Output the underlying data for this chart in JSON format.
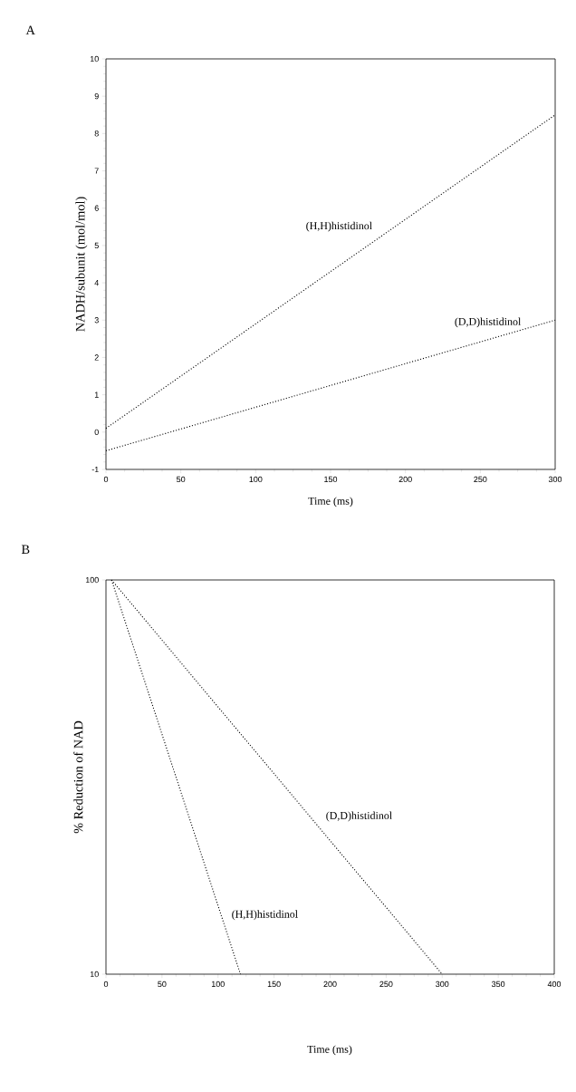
{
  "chart_data": [
    {
      "type": "line",
      "title": "A",
      "xlabel": "Time (ms)",
      "ylabel": "NADH/subunit (mol/mol)",
      "xlim": [
        0,
        300
      ],
      "ylim": [
        -1,
        10
      ],
      "xticks": [
        0,
        50,
        100,
        150,
        200,
        250,
        300
      ],
      "yticks": [
        -1,
        0,
        1,
        2,
        3,
        4,
        5,
        6,
        7,
        8,
        9,
        10
      ],
      "line_style": "dotted",
      "marker": "none",
      "series": [
        {
          "name": "(H,H)histidinol",
          "color": "#000000",
          "x": [
            0,
            300
          ],
          "values": [
            0.1,
            8.5
          ]
        },
        {
          "name": "(D,D)histidinol",
          "color": "#000000",
          "x": [
            0,
            300
          ],
          "values": [
            -0.5,
            3.0
          ]
        }
      ]
    },
    {
      "type": "line",
      "title": "B",
      "xlabel": "Time (ms)",
      "ylabel": "% Reduction of NAD",
      "log": "y",
      "xlim": [
        0,
        400
      ],
      "ylim": [
        10,
        100
      ],
      "xticks": [
        0,
        50,
        100,
        150,
        200,
        250,
        300,
        350,
        400
      ],
      "yticks": [
        10,
        100
      ],
      "line_style": "dotted",
      "marker": "none",
      "series": [
        {
          "name": "(D,D)histidinol",
          "color": "#000000",
          "x": [
            5,
            300
          ],
          "values": [
            100,
            10
          ]
        },
        {
          "name": "(H,H)histidinol",
          "color": "#000000",
          "x": [
            5,
            120
          ],
          "values": [
            100,
            10
          ]
        }
      ]
    }
  ]
}
